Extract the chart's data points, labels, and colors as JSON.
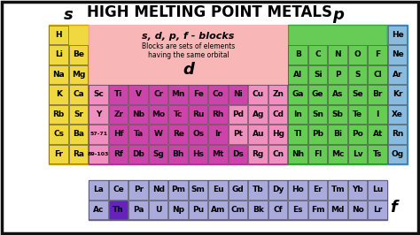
{
  "title": "HIGH MELTING POINT METALS",
  "bg_color": "#ffffff",
  "colors": {
    "s_block": "#f0d840",
    "d_purple": "#cc44aa",
    "d_pink": "#f090c0",
    "p_green": "#66cc55",
    "p_blue": "#88bbdd",
    "f_lavender": "#aaaadd",
    "f_highlight": "#6622bb",
    "annotation_bg": "#f8aaaa",
    "border": "#111111"
  },
  "s_block_elements": [
    {
      "sym": "H",
      "col": 0,
      "row": 0
    },
    {
      "sym": "Li",
      "col": 0,
      "row": 1
    },
    {
      "sym": "Be",
      "col": 1,
      "row": 1
    },
    {
      "sym": "Na",
      "col": 0,
      "row": 2
    },
    {
      "sym": "Mg",
      "col": 1,
      "row": 2
    },
    {
      "sym": "K",
      "col": 0,
      "row": 3
    },
    {
      "sym": "Ca",
      "col": 1,
      "row": 3
    },
    {
      "sym": "Rb",
      "col": 0,
      "row": 4
    },
    {
      "sym": "Sr",
      "col": 1,
      "row": 4
    },
    {
      "sym": "Cs",
      "col": 0,
      "row": 5
    },
    {
      "sym": "Ba",
      "col": 1,
      "row": 5
    },
    {
      "sym": "Fr",
      "col": 0,
      "row": 6
    },
    {
      "sym": "Ra",
      "col": 1,
      "row": 6
    }
  ],
  "d_block_elements": [
    {
      "sym": "Sc",
      "col": 2,
      "row": 3,
      "color": "d_pink"
    },
    {
      "sym": "Ti",
      "col": 3,
      "row": 3,
      "color": "d_purple"
    },
    {
      "sym": "V",
      "col": 4,
      "row": 3,
      "color": "d_purple"
    },
    {
      "sym": "Cr",
      "col": 5,
      "row": 3,
      "color": "d_purple"
    },
    {
      "sym": "Mn",
      "col": 6,
      "row": 3,
      "color": "d_purple"
    },
    {
      "sym": "Fe",
      "col": 7,
      "row": 3,
      "color": "d_purple"
    },
    {
      "sym": "Co",
      "col": 8,
      "row": 3,
      "color": "d_purple"
    },
    {
      "sym": "Ni",
      "col": 9,
      "row": 3,
      "color": "d_purple"
    },
    {
      "sym": "Cu",
      "col": 10,
      "row": 3,
      "color": "d_pink"
    },
    {
      "sym": "Zn",
      "col": 11,
      "row": 3,
      "color": "d_pink"
    },
    {
      "sym": "Y",
      "col": 2,
      "row": 4,
      "color": "d_pink"
    },
    {
      "sym": "Zr",
      "col": 3,
      "row": 4,
      "color": "d_purple"
    },
    {
      "sym": "Nb",
      "col": 4,
      "row": 4,
      "color": "d_purple"
    },
    {
      "sym": "Mo",
      "col": 5,
      "row": 4,
      "color": "d_purple"
    },
    {
      "sym": "Tc",
      "col": 6,
      "row": 4,
      "color": "d_purple"
    },
    {
      "sym": "Ru",
      "col": 7,
      "row": 4,
      "color": "d_purple"
    },
    {
      "sym": "Rh",
      "col": 8,
      "row": 4,
      "color": "d_purple"
    },
    {
      "sym": "Pd",
      "col": 9,
      "row": 4,
      "color": "d_pink"
    },
    {
      "sym": "Ag",
      "col": 10,
      "row": 4,
      "color": "d_pink"
    },
    {
      "sym": "Cd",
      "col": 11,
      "row": 4,
      "color": "d_pink"
    },
    {
      "sym": "57-71",
      "col": 2,
      "row": 5,
      "color": "d_pink",
      "tiny": true
    },
    {
      "sym": "Hf",
      "col": 3,
      "row": 5,
      "color": "d_purple"
    },
    {
      "sym": "Ta",
      "col": 4,
      "row": 5,
      "color": "d_purple"
    },
    {
      "sym": "W",
      "col": 5,
      "row": 5,
      "color": "d_purple"
    },
    {
      "sym": "Re",
      "col": 6,
      "row": 5,
      "color": "d_purple"
    },
    {
      "sym": "Os",
      "col": 7,
      "row": 5,
      "color": "d_purple"
    },
    {
      "sym": "Ir",
      "col": 8,
      "row": 5,
      "color": "d_purple"
    },
    {
      "sym": "Pt",
      "col": 9,
      "row": 5,
      "color": "d_pink"
    },
    {
      "sym": "Au",
      "col": 10,
      "row": 5,
      "color": "d_pink"
    },
    {
      "sym": "Hg",
      "col": 11,
      "row": 5,
      "color": "d_pink"
    },
    {
      "sym": "89-103",
      "col": 2,
      "row": 6,
      "color": "d_pink",
      "tiny": true
    },
    {
      "sym": "Rf",
      "col": 3,
      "row": 6,
      "color": "d_purple"
    },
    {
      "sym": "Db",
      "col": 4,
      "row": 6,
      "color": "d_purple"
    },
    {
      "sym": "Sg",
      "col": 5,
      "row": 6,
      "color": "d_purple"
    },
    {
      "sym": "Bh",
      "col": 6,
      "row": 6,
      "color": "d_purple"
    },
    {
      "sym": "Hs",
      "col": 7,
      "row": 6,
      "color": "d_purple"
    },
    {
      "sym": "Mt",
      "col": 8,
      "row": 6,
      "color": "d_purple"
    },
    {
      "sym": "Ds",
      "col": 9,
      "row": 6,
      "color": "d_purple"
    },
    {
      "sym": "Rg",
      "col": 10,
      "row": 6,
      "color": "d_pink"
    },
    {
      "sym": "Cn",
      "col": 11,
      "row": 6,
      "color": "d_pink"
    }
  ],
  "p_block_elements": [
    {
      "sym": "He",
      "col": 17,
      "row": 0,
      "color": "p_blue"
    },
    {
      "sym": "B",
      "col": 12,
      "row": 1,
      "color": "p_green"
    },
    {
      "sym": "C",
      "col": 13,
      "row": 1,
      "color": "p_green"
    },
    {
      "sym": "N",
      "col": 14,
      "row": 1,
      "color": "p_green"
    },
    {
      "sym": "O",
      "col": 15,
      "row": 1,
      "color": "p_green"
    },
    {
      "sym": "F",
      "col": 16,
      "row": 1,
      "color": "p_green"
    },
    {
      "sym": "Ne",
      "col": 17,
      "row": 1,
      "color": "p_blue"
    },
    {
      "sym": "Al",
      "col": 12,
      "row": 2,
      "color": "p_green"
    },
    {
      "sym": "Si",
      "col": 13,
      "row": 2,
      "color": "p_green"
    },
    {
      "sym": "P",
      "col": 14,
      "row": 2,
      "color": "p_green"
    },
    {
      "sym": "S",
      "col": 15,
      "row": 2,
      "color": "p_green"
    },
    {
      "sym": "Cl",
      "col": 16,
      "row": 2,
      "color": "p_green"
    },
    {
      "sym": "Ar",
      "col": 17,
      "row": 2,
      "color": "p_blue"
    },
    {
      "sym": "Ga",
      "col": 12,
      "row": 3,
      "color": "p_green"
    },
    {
      "sym": "Ge",
      "col": 13,
      "row": 3,
      "color": "p_green"
    },
    {
      "sym": "As",
      "col": 14,
      "row": 3,
      "color": "p_green"
    },
    {
      "sym": "Se",
      "col": 15,
      "row": 3,
      "color": "p_green"
    },
    {
      "sym": "Br",
      "col": 16,
      "row": 3,
      "color": "p_green"
    },
    {
      "sym": "Kr",
      "col": 17,
      "row": 3,
      "color": "p_blue"
    },
    {
      "sym": "In",
      "col": 12,
      "row": 4,
      "color": "p_green"
    },
    {
      "sym": "Sn",
      "col": 13,
      "row": 4,
      "color": "p_green"
    },
    {
      "sym": "Sb",
      "col": 14,
      "row": 4,
      "color": "p_green"
    },
    {
      "sym": "Te",
      "col": 15,
      "row": 4,
      "color": "p_green"
    },
    {
      "sym": "I",
      "col": 16,
      "row": 4,
      "color": "p_green"
    },
    {
      "sym": "Xe",
      "col": 17,
      "row": 4,
      "color": "p_blue"
    },
    {
      "sym": "Tl",
      "col": 12,
      "row": 5,
      "color": "p_green"
    },
    {
      "sym": "Pb",
      "col": 13,
      "row": 5,
      "color": "p_green"
    },
    {
      "sym": "Bi",
      "col": 14,
      "row": 5,
      "color": "p_green"
    },
    {
      "sym": "Po",
      "col": 15,
      "row": 5,
      "color": "p_green"
    },
    {
      "sym": "At",
      "col": 16,
      "row": 5,
      "color": "p_green"
    },
    {
      "sym": "Rn",
      "col": 17,
      "row": 5,
      "color": "p_blue"
    },
    {
      "sym": "Nh",
      "col": 12,
      "row": 6,
      "color": "p_green"
    },
    {
      "sym": "Fl",
      "col": 13,
      "row": 6,
      "color": "p_green"
    },
    {
      "sym": "Mc",
      "col": 14,
      "row": 6,
      "color": "p_green"
    },
    {
      "sym": "Lv",
      "col": 15,
      "row": 6,
      "color": "p_green"
    },
    {
      "sym": "Ts",
      "col": 16,
      "row": 6,
      "color": "p_green"
    },
    {
      "sym": "Og",
      "col": 17,
      "row": 6,
      "color": "p_blue"
    }
  ],
  "f_block_elements": [
    {
      "sym": "La",
      "col": 0,
      "row": 0,
      "color": "f_lavender"
    },
    {
      "sym": "Ce",
      "col": 1,
      "row": 0,
      "color": "f_lavender"
    },
    {
      "sym": "Pr",
      "col": 2,
      "row": 0,
      "color": "f_lavender"
    },
    {
      "sym": "Nd",
      "col": 3,
      "row": 0,
      "color": "f_lavender"
    },
    {
      "sym": "Pm",
      "col": 4,
      "row": 0,
      "color": "f_lavender"
    },
    {
      "sym": "Sm",
      "col": 5,
      "row": 0,
      "color": "f_lavender"
    },
    {
      "sym": "Eu",
      "col": 6,
      "row": 0,
      "color": "f_lavender"
    },
    {
      "sym": "Gd",
      "col": 7,
      "row": 0,
      "color": "f_lavender"
    },
    {
      "sym": "Tb",
      "col": 8,
      "row": 0,
      "color": "f_lavender"
    },
    {
      "sym": "Dy",
      "col": 9,
      "row": 0,
      "color": "f_lavender"
    },
    {
      "sym": "Ho",
      "col": 10,
      "row": 0,
      "color": "f_lavender"
    },
    {
      "sym": "Er",
      "col": 11,
      "row": 0,
      "color": "f_lavender"
    },
    {
      "sym": "Tm",
      "col": 12,
      "row": 0,
      "color": "f_lavender"
    },
    {
      "sym": "Yb",
      "col": 13,
      "row": 0,
      "color": "f_lavender"
    },
    {
      "sym": "Lu",
      "col": 14,
      "row": 0,
      "color": "f_lavender"
    },
    {
      "sym": "Ac",
      "col": 0,
      "row": 1,
      "color": "f_lavender"
    },
    {
      "sym": "Th",
      "col": 1,
      "row": 1,
      "color": "f_highlight"
    },
    {
      "sym": "Pa",
      "col": 2,
      "row": 1,
      "color": "f_lavender"
    },
    {
      "sym": "U",
      "col": 3,
      "row": 1,
      "color": "f_lavender"
    },
    {
      "sym": "Np",
      "col": 4,
      "row": 1,
      "color": "f_lavender"
    },
    {
      "sym": "Pu",
      "col": 5,
      "row": 1,
      "color": "f_lavender"
    },
    {
      "sym": "Am",
      "col": 6,
      "row": 1,
      "color": "f_lavender"
    },
    {
      "sym": "Cm",
      "col": 7,
      "row": 1,
      "color": "f_lavender"
    },
    {
      "sym": "Bk",
      "col": 8,
      "row": 1,
      "color": "f_lavender"
    },
    {
      "sym": "Cf",
      "col": 9,
      "row": 1,
      "color": "f_lavender"
    },
    {
      "sym": "Es",
      "col": 10,
      "row": 1,
      "color": "f_lavender"
    },
    {
      "sym": "Fm",
      "col": 11,
      "row": 1,
      "color": "f_lavender"
    },
    {
      "sym": "Md",
      "col": 12,
      "row": 1,
      "color": "f_lavender"
    },
    {
      "sym": "No",
      "col": 13,
      "row": 1,
      "color": "f_lavender"
    },
    {
      "sym": "Lr",
      "col": 14,
      "row": 1,
      "color": "f_lavender"
    }
  ]
}
